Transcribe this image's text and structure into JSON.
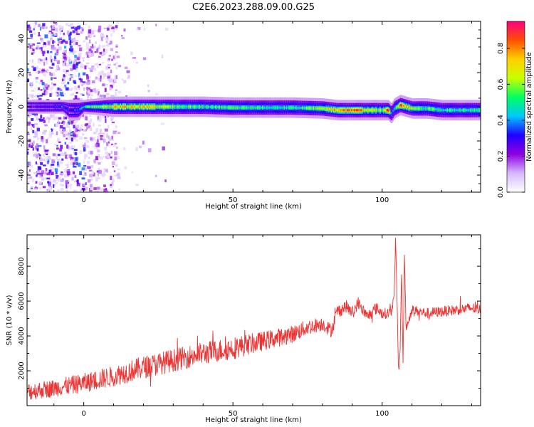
{
  "figure": {
    "title": "C2E6.2023.288.09.00.G25"
  },
  "chart_data": [
    {
      "type": "heatmap",
      "xlabel": "Height of straight line (km)",
      "ylabel": "Frequency (Hz)",
      "xlim": [
        -19,
        133
      ],
      "ylim": [
        -50,
        50
      ],
      "xticks": [
        0,
        50,
        100
      ],
      "yticks": [
        -40,
        -20,
        0,
        20,
        40
      ],
      "grid": false,
      "ridge": {
        "x": [
          -19,
          -10,
          -7,
          -5,
          -2,
          0,
          10,
          20,
          30,
          40,
          50,
          60,
          70,
          80,
          85,
          90,
          95,
          100,
          102,
          103,
          104,
          106,
          110,
          115,
          120,
          125,
          133
        ],
        "freq": [
          0,
          0,
          0,
          -2,
          -2,
          0,
          0,
          0,
          0,
          0,
          -0.5,
          -0.5,
          -0.5,
          -1,
          -2,
          -2,
          -2,
          -2,
          -2,
          -4,
          -1,
          1,
          -1,
          -1,
          -2,
          -2,
          -2
        ],
        "amp": [
          0.25,
          0.3,
          0.4,
          0.3,
          0.35,
          0.5,
          0.7,
          0.75,
          0.6,
          0.5,
          0.55,
          0.5,
          0.5,
          0.6,
          0.8,
          0.85,
          0.7,
          0.6,
          0.9,
          0.3,
          0.5,
          0.9,
          0.6,
          0.55,
          0.5,
          0.5,
          0.5
        ],
        "width": [
          2,
          2,
          2,
          3,
          3,
          2,
          3,
          3,
          3,
          3,
          3,
          3,
          3,
          3,
          3,
          3,
          3,
          3,
          3,
          3,
          3,
          3,
          3,
          3,
          3,
          3,
          3
        ]
      },
      "colorbar": {
        "label": "Normalized spectral amplitude",
        "range": [
          0,
          0.95
        ],
        "ticks": [
          "0.0",
          "0.2",
          "0.4",
          "0.6",
          "0.8"
        ],
        "colormap": [
          "#ffffff",
          "#d6b8ff",
          "#9000e0",
          "#2000ff",
          "#00c8ff",
          "#00ff60",
          "#c8ff00",
          "#ffd000",
          "#ff5000",
          "#ff0080"
        ]
      }
    },
    {
      "type": "line",
      "xlabel": "Height of straight line (km)",
      "ylabel": "SNR (10 * v/v)",
      "xlim": [
        -19,
        133
      ],
      "ylim": [
        0,
        9800
      ],
      "xticks": [
        0,
        50,
        100
      ],
      "yticks": [
        2000,
        4000,
        6000,
        8000
      ],
      "grid": false,
      "series": [
        {
          "color": "#ee3333",
          "x": [
            -19,
            -10,
            0,
            10,
            20,
            30,
            40,
            50,
            60,
            70,
            75,
            80,
            83,
            85,
            88,
            90,
            92,
            95,
            98,
            100,
            102,
            103,
            104,
            104.5,
            105,
            105.5,
            106,
            106.5,
            107,
            107.5,
            108,
            110,
            115,
            120,
            125,
            130,
            133
          ],
          "y": [
            800,
            1000,
            1300,
            1700,
            2200,
            2600,
            3000,
            3300,
            3700,
            4100,
            4500,
            4700,
            4300,
            5400,
            5700,
            5300,
            5900,
            5100,
            5600,
            5300,
            5300,
            5400,
            6200,
            9600,
            6000,
            1800,
            3000,
            7800,
            2500,
            8700,
            4400,
            5500,
            5300,
            5400,
            5500,
            5600,
            5500
          ],
          "spread": [
            500,
            500,
            550,
            600,
            650,
            650,
            650,
            650,
            550,
            500,
            450,
            400,
            400,
            400,
            350,
            350,
            350,
            350,
            350,
            300,
            300,
            300,
            200,
            200,
            200,
            200,
            200,
            200,
            200,
            200,
            200,
            280,
            300,
            300,
            300,
            300,
            300
          ]
        }
      ]
    }
  ]
}
